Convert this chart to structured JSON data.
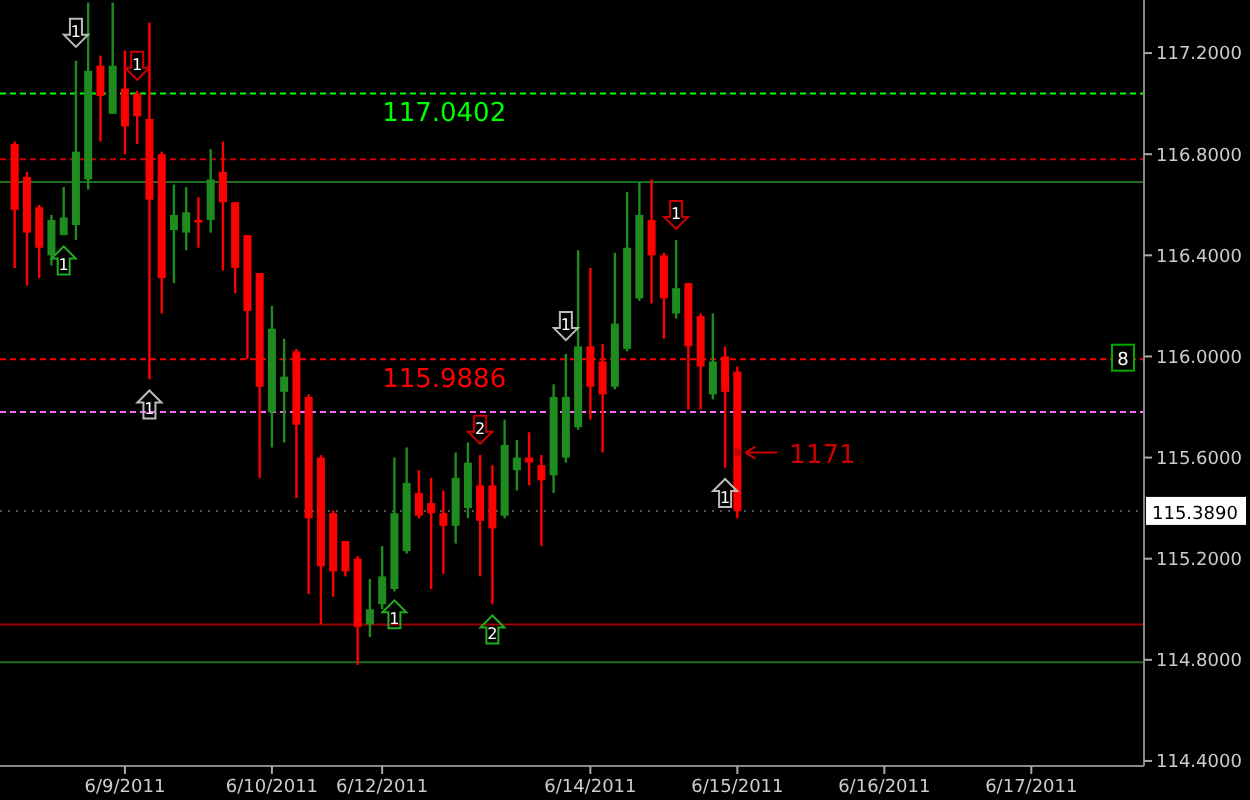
{
  "chart_data": {
    "type": "candlestick",
    "categories": [
      null,
      null,
      null,
      null,
      null,
      null,
      null,
      null,
      null,
      "6/9/2011",
      null,
      null,
      null,
      null,
      null,
      null,
      null,
      null,
      null,
      null,
      null,
      "6/10/2011",
      null,
      null,
      null,
      null,
      null,
      null,
      null,
      null,
      "6/12/2011",
      null,
      null,
      null,
      null,
      null,
      null,
      null,
      null,
      null,
      null,
      null,
      null,
      null,
      null,
      null,
      null,
      "6/14/2011",
      null,
      null,
      null,
      null,
      null,
      null,
      null,
      null,
      null,
      null,
      null,
      "6/15/2011",
      null,
      null,
      null,
      null,
      null,
      null,
      null,
      null,
      null,
      null,
      null,
      "6/16/2011",
      null,
      null,
      null,
      null,
      null,
      null,
      null,
      null,
      null,
      null,
      null,
      "6/17/2011",
      null,
      null,
      null,
      null,
      null,
      null,
      null,
      null
    ],
    "ohlc": [
      [
        116.84,
        116.85,
        116.35,
        116.58
      ],
      [
        116.71,
        116.73,
        116.28,
        116.49
      ],
      [
        116.59,
        116.6,
        116.31,
        116.43
      ],
      [
        116.4,
        116.56,
        116.36,
        116.54
      ],
      [
        116.48,
        116.67,
        116.48,
        116.55
      ],
      [
        116.52,
        117.17,
        116.46,
        116.81
      ],
      [
        116.7,
        117.4,
        116.66,
        117.13
      ],
      [
        117.15,
        117.19,
        116.85,
        117.03
      ],
      [
        116.96,
        117.4,
        116.96,
        117.15
      ],
      [
        117.06,
        117.21,
        116.8,
        116.91
      ],
      [
        117.04,
        117.05,
        116.84,
        116.95
      ],
      [
        116.94,
        117.32,
        115.91,
        116.62
      ],
      [
        116.8,
        116.81,
        116.17,
        116.31
      ],
      [
        116.5,
        116.68,
        116.29,
        116.56
      ],
      [
        116.49,
        116.67,
        116.42,
        116.57
      ],
      [
        116.54,
        116.63,
        116.43,
        116.53
      ],
      [
        116.54,
        116.82,
        116.49,
        116.7
      ],
      [
        116.73,
        116.85,
        116.34,
        116.61
      ],
      [
        116.61,
        116.61,
        116.25,
        116.35
      ],
      [
        116.48,
        116.48,
        115.99,
        116.18
      ],
      [
        116.33,
        116.33,
        115.52,
        115.88
      ],
      [
        115.78,
        116.2,
        115.64,
        116.11
      ],
      [
        115.86,
        116.07,
        115.66,
        115.92
      ],
      [
        116.02,
        116.03,
        115.44,
        115.73
      ],
      [
        115.84,
        115.85,
        115.06,
        115.36
      ],
      [
        115.6,
        115.61,
        114.94,
        115.17
      ],
      [
        115.38,
        115.39,
        115.05,
        115.15
      ],
      [
        115.27,
        115.27,
        115.13,
        115.15
      ],
      [
        115.2,
        115.21,
        114.78,
        114.93
      ],
      [
        114.94,
        115.12,
        114.89,
        115.0
      ],
      [
        115.02,
        115.25,
        115.0,
        115.13
      ],
      [
        115.08,
        115.6,
        115.07,
        115.38
      ],
      [
        115.23,
        115.64,
        115.22,
        115.5
      ],
      [
        115.46,
        115.55,
        115.36,
        115.37
      ],
      [
        115.42,
        115.52,
        115.08,
        115.38
      ],
      [
        115.38,
        115.47,
        115.14,
        115.33
      ],
      [
        115.33,
        115.62,
        115.26,
        115.52
      ],
      [
        115.4,
        115.66,
        115.36,
        115.58
      ],
      [
        115.49,
        115.61,
        115.13,
        115.35
      ],
      [
        115.49,
        115.57,
        115.02,
        115.32
      ],
      [
        115.37,
        115.75,
        115.36,
        115.65
      ],
      [
        115.55,
        115.67,
        115.47,
        115.6
      ],
      [
        115.6,
        115.7,
        115.49,
        115.58
      ],
      [
        115.57,
        115.61,
        115.25,
        115.51
      ],
      [
        115.53,
        115.89,
        115.46,
        115.84
      ],
      [
        115.6,
        116.01,
        115.58,
        115.84
      ],
      [
        115.72,
        116.42,
        115.71,
        116.04
      ],
      [
        116.04,
        116.35,
        115.75,
        115.88
      ],
      [
        115.98,
        116.05,
        115.62,
        115.85
      ],
      [
        115.88,
        116.41,
        115.87,
        116.13
      ],
      [
        116.03,
        116.65,
        116.02,
        116.43
      ],
      [
        116.23,
        116.69,
        116.22,
        116.56
      ],
      [
        116.54,
        116.7,
        116.21,
        116.4
      ],
      [
        116.4,
        116.41,
        116.07,
        116.23
      ],
      [
        116.17,
        116.46,
        116.15,
        116.27
      ],
      [
        116.29,
        116.29,
        115.79,
        116.04
      ],
      [
        116.16,
        116.17,
        115.79,
        115.96
      ],
      [
        115.85,
        116.17,
        115.83,
        115.98
      ],
      [
        116.0,
        116.04,
        115.56,
        115.86
      ],
      [
        115.94,
        115.96,
        115.36,
        115.389
      ],
      null,
      null,
      null,
      null,
      null,
      null,
      null,
      null,
      null,
      null,
      null,
      null,
      null,
      null,
      null,
      null,
      null,
      null,
      null,
      null,
      null,
      null,
      null,
      null,
      null,
      null,
      null,
      null,
      null,
      null,
      null,
      null
    ],
    "colors": [
      "#ff0000",
      "#ff0000",
      "#ff0000",
      "#1e8c1e",
      "#1e8c1e",
      "#1e8c1e",
      "#1e8c1e",
      "#ff0000",
      "#1e8c1e",
      "#ff0000",
      "#ff0000",
      "#ff0000",
      "#ff0000",
      "#1e8c1e",
      "#1e8c1e",
      "#ff0000",
      "#1e8c1e",
      "#ff0000",
      "#ff0000",
      "#ff0000",
      "#ff0000",
      "#1e8c1e",
      "#1e8c1e",
      "#ff0000",
      "#ff0000",
      "#ff0000",
      "#ff0000",
      "#ff0000",
      "#ff0000",
      "#1e8c1e",
      "#1e8c1e",
      "#1e8c1e",
      "#1e8c1e",
      "#ff0000",
      "#ff0000",
      "#ff0000",
      "#1e8c1e",
      "#1e8c1e",
      "#ff0000",
      "#ff0000",
      "#1e8c1e",
      "#1e8c1e",
      "#ff0000",
      "#ff0000",
      "#1e8c1e",
      "#1e8c1e",
      "#1e8c1e",
      "#ff0000",
      "#ff0000",
      "#1e8c1e",
      "#1e8c1e",
      "#1e8c1e",
      "#ff0000",
      "#ff0000",
      "#1e8c1e",
      "#ff0000",
      "#ff0000",
      "#1e8c1e",
      "#ff0000",
      "#ff0000",
      null,
      null,
      null,
      null,
      null,
      null,
      null,
      null,
      null,
      null,
      null,
      null,
      null,
      null,
      null,
      null,
      null,
      null,
      null,
      null,
      null,
      null,
      null,
      null,
      null,
      null,
      null,
      null,
      null,
      null,
      null,
      null
    ],
    "series": [
      {
        "type": "scatter",
        "colors": [
          null,
          null,
          null,
          null,
          "#22aa22",
          "#bbbbbb",
          null,
          null,
          null,
          null,
          "#cc0000",
          "#bbbbbb",
          null,
          null,
          null,
          null,
          null,
          null,
          null,
          null,
          null,
          null,
          null,
          null,
          null,
          null,
          null,
          null,
          null,
          null,
          null,
          "#22aa22",
          null,
          null,
          null,
          null,
          null,
          null,
          "#cc0000",
          "#22aa22",
          null,
          null,
          null,
          null,
          null,
          "#bbbbbb",
          null,
          null,
          null,
          null,
          null,
          null,
          null,
          null,
          "#cc0000",
          null,
          null,
          null,
          "#bbbbbb",
          "#cc0000",
          null,
          null,
          null,
          null,
          null,
          null,
          null,
          null,
          null,
          null,
          null,
          null,
          null,
          null,
          null,
          null,
          null,
          null,
          null,
          null,
          null,
          null,
          null,
          null,
          null,
          null,
          null,
          null,
          null,
          null,
          null,
          null
        ],
        "values": [
          null,
          null,
          null,
          null,
          116.38,
          117.28,
          null,
          null,
          null,
          null,
          117.15,
          115.81,
          null,
          null,
          null,
          null,
          null,
          null,
          null,
          null,
          null,
          null,
          null,
          null,
          null,
          null,
          null,
          null,
          null,
          null,
          null,
          114.98,
          null,
          null,
          null,
          null,
          null,
          null,
          115.71,
          114.92,
          null,
          null,
          null,
          null,
          null,
          116.12,
          null,
          null,
          null,
          null,
          null,
          null,
          null,
          null,
          116.56,
          null,
          null,
          null,
          115.46,
          115.62,
          null,
          null,
          null,
          null,
          null,
          null,
          null,
          null,
          null,
          null,
          null,
          null,
          null,
          null,
          null,
          null,
          null,
          null,
          null,
          null,
          null,
          null,
          null,
          null,
          null,
          null,
          null,
          null,
          null,
          null,
          null,
          null
        ]
      }
    ],
    "ylim": [
      114.38,
      117.41
    ],
    "yticks": [
      {
        "value": 114.4,
        "label": "114.4000"
      },
      {
        "value": 114.8,
        "label": "114.8000"
      },
      {
        "value": 115.2,
        "label": "115.2000"
      },
      {
        "value": 115.6,
        "label": "115.6000"
      },
      {
        "value": 116,
        "label": "116.0000"
      },
      {
        "value": 116.4,
        "label": "116.4000"
      },
      {
        "value": 116.8,
        "label": "116.8000"
      },
      {
        "value": 117.2,
        "label": "117.2000"
      }
    ],
    "ref_lines": [
      {
        "axis": "y",
        "value": 117.0402,
        "label": "117.0402",
        "color": "#00ff00",
        "line_style": "dashed"
      },
      {
        "axis": "y",
        "value": 115.9886,
        "label": "115.9886",
        "color": "#ff0000",
        "line_style": "dashed"
      },
      {
        "axis": "y",
        "value": 116.69,
        "color": "#1e6e1e",
        "line_style": "solid"
      },
      {
        "axis": "y",
        "value": 116.78,
        "color": "#cc0000",
        "line_style": "dashed"
      },
      {
        "axis": "y",
        "value": 115.78,
        "color": "#ff66ff",
        "line_style": "dashed"
      },
      {
        "axis": "y",
        "value": 114.79,
        "color": "#1e6e1e",
        "line_style": "solid"
      },
      {
        "axis": "y",
        "value": 114.94,
        "color": "#990000",
        "line_style": "solid"
      },
      {
        "axis": "y",
        "value": 115.389,
        "label": "115.3890",
        "color": "#555555",
        "line_style": "dotted"
      }
    ],
    "annotations": [
      "8",
      {
        "text": "1",
        "y": 116.38
      },
      {
        "text": "1",
        "y": 117.28
      },
      {
        "text": "1",
        "y": 117.15
      },
      {
        "text": "1",
        "y": 115.81
      },
      {
        "text": "1",
        "y": 114.98
      },
      {
        "text": "2",
        "y": 115.71
      },
      {
        "text": "2",
        "y": 114.92
      },
      {
        "text": "1",
        "y": 116.12
      },
      {
        "text": "1",
        "y": 116.56
      },
      {
        "text": "1",
        "y": 115.46
      },
      "1171"
    ],
    "grid": false
  }
}
